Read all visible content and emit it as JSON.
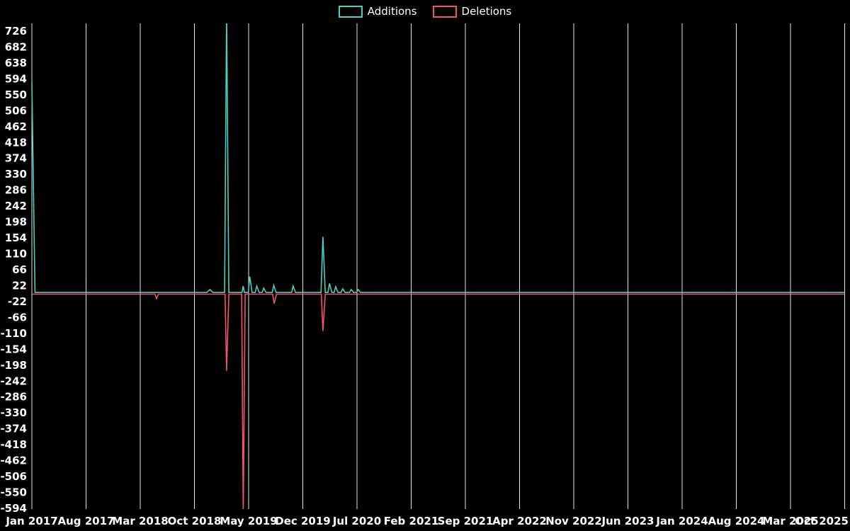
{
  "background": "#000000",
  "legend": {
    "items": [
      {
        "label": "Additions",
        "color": "#4ecdc4"
      },
      {
        "label": "Deletions",
        "color": "#f2536e"
      }
    ]
  },
  "chart_data": {
    "type": "line",
    "title": "",
    "xlabel": "",
    "ylabel": "",
    "background": "#000000",
    "grid": {
      "vertical": true,
      "horizontal": false,
      "color": "#ffffff"
    },
    "legend_position": "top-center",
    "x_axis": {
      "unit": "month",
      "total_months": 105,
      "months_per_tick": 7,
      "tick_labels": [
        "Jan 2017",
        "Aug 2017",
        "Mar 2018",
        "Oct 2018",
        "May 2019",
        "Dec 2019",
        "Jul 2020",
        "Feb 2021",
        "Sep 2021",
        "Apr 2022",
        "Nov 2022",
        "Jun 2023",
        "Jan 2024",
        "Aug 2024",
        "Mar 2025",
        "Oct 2025"
      ]
    },
    "y_axis": {
      "min": -594,
      "max": 726,
      "tick_step": 44,
      "tick_labels": [
        726,
        682,
        638,
        594,
        550,
        506,
        462,
        418,
        374,
        330,
        286,
        242,
        198,
        154,
        110,
        66,
        22,
        -22,
        -66,
        -110,
        -154,
        -198,
        -242,
        -286,
        -330,
        -374,
        -418,
        -462,
        -506,
        -550,
        -594
      ]
    },
    "series": [
      {
        "name": "Additions",
        "color": "#4ecdc4",
        "points": [
          [
            0,
            580
          ],
          [
            0.4,
            0
          ],
          [
            22.6,
            0
          ],
          [
            23,
            8
          ],
          [
            23.4,
            0
          ],
          [
            24.9,
            0
          ],
          [
            25.15,
            780
          ],
          [
            25.45,
            0
          ],
          [
            27.15,
            0
          ],
          [
            27.3,
            18
          ],
          [
            27.45,
            0
          ],
          [
            27.95,
            0
          ],
          [
            28.15,
            44
          ],
          [
            28.45,
            0
          ],
          [
            28.85,
            0
          ],
          [
            29.05,
            18
          ],
          [
            29.35,
            0
          ],
          [
            29.75,
            0
          ],
          [
            29.95,
            12
          ],
          [
            30.25,
            0
          ],
          [
            31.05,
            0
          ],
          [
            31.25,
            20
          ],
          [
            31.55,
            0
          ],
          [
            33.55,
            0
          ],
          [
            33.75,
            18
          ],
          [
            34.05,
            0
          ],
          [
            37.35,
            0
          ],
          [
            37.6,
            154
          ],
          [
            37.9,
            0
          ],
          [
            38.25,
            0
          ],
          [
            38.45,
            25
          ],
          [
            38.75,
            0
          ],
          [
            39.05,
            0
          ],
          [
            39.25,
            16
          ],
          [
            39.55,
            0
          ],
          [
            39.95,
            0
          ],
          [
            40.15,
            10
          ],
          [
            40.45,
            0
          ],
          [
            41.05,
            0
          ],
          [
            41.25,
            8
          ],
          [
            41.55,
            0
          ],
          [
            41.95,
            0
          ],
          [
            42.15,
            8
          ],
          [
            42.45,
            0
          ],
          [
            105,
            0
          ]
        ]
      },
      {
        "name": "Deletions",
        "color": "#f2536e",
        "points": [
          [
            0,
            0
          ],
          [
            15.9,
            0
          ],
          [
            16.1,
            -12
          ],
          [
            16.35,
            0
          ],
          [
            24.95,
            0
          ],
          [
            25.15,
            -212
          ],
          [
            25.45,
            0
          ],
          [
            27.1,
            0
          ],
          [
            27.3,
            -610
          ],
          [
            27.55,
            0
          ],
          [
            31.1,
            0
          ],
          [
            31.3,
            -26
          ],
          [
            31.6,
            0
          ],
          [
            37.4,
            0
          ],
          [
            37.6,
            -102
          ],
          [
            37.9,
            0
          ],
          [
            105,
            0
          ]
        ]
      }
    ]
  }
}
